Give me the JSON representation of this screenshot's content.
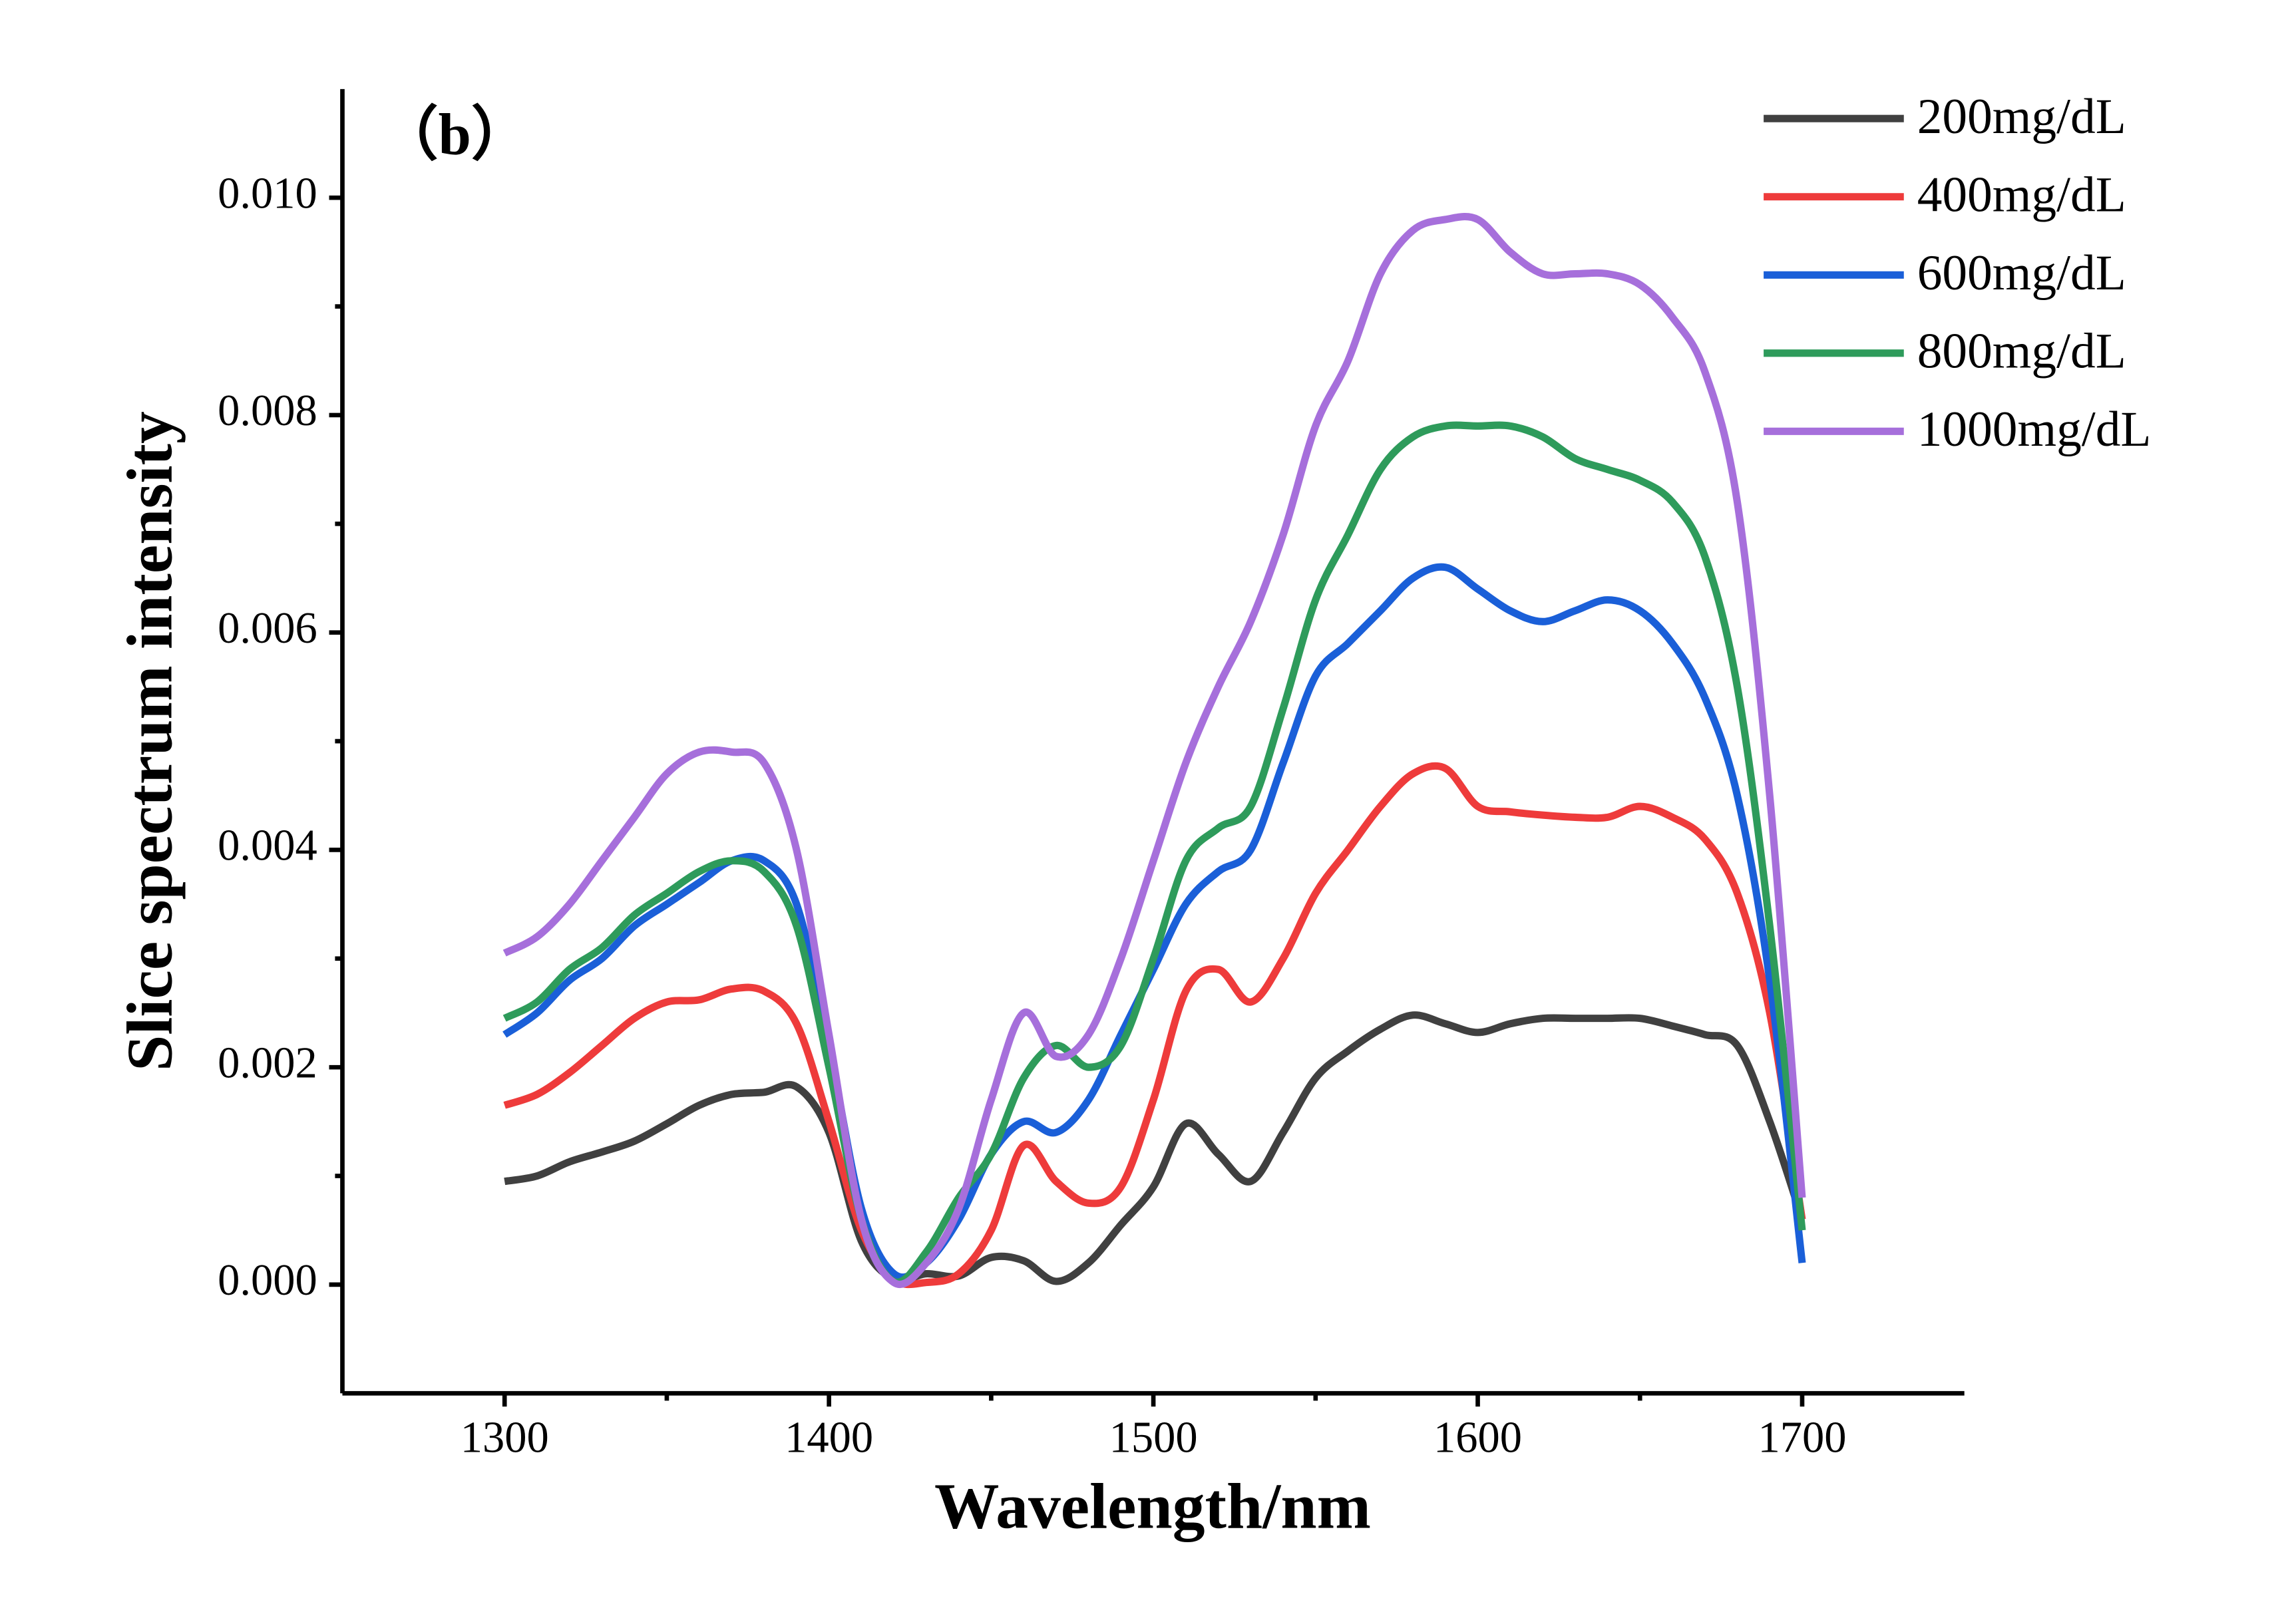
{
  "chart_data": {
    "type": "line",
    "annotation": "（b）",
    "x_label": "Wavelength/nm",
    "y_label": "Slice spectrum intensity",
    "x": [
      1300,
      1310,
      1320,
      1330,
      1340,
      1350,
      1360,
      1370,
      1380,
      1390,
      1400,
      1410,
      1420,
      1430,
      1440,
      1450,
      1460,
      1470,
      1480,
      1490,
      1500,
      1510,
      1520,
      1530,
      1540,
      1550,
      1560,
      1570,
      1580,
      1590,
      1600,
      1610,
      1620,
      1630,
      1640,
      1650,
      1660,
      1670,
      1680,
      1690,
      1700
    ],
    "series": [
      {
        "name": "200mg/dL",
        "color": "#404040",
        "values": [
          0.00095,
          0.001,
          0.00113,
          0.00122,
          0.00132,
          0.00148,
          0.00165,
          0.00175,
          0.00177,
          0.00182,
          0.0014,
          0.0004,
          5e-05,
          0.0001,
          8e-05,
          0.00025,
          0.00022,
          3e-05,
          0.0002,
          0.00055,
          0.0009,
          0.00148,
          0.0012,
          0.00095,
          0.0014,
          0.0019,
          0.00215,
          0.00235,
          0.00248,
          0.0024,
          0.00232,
          0.0024,
          0.00245,
          0.00245,
          0.00245,
          0.00245,
          0.00238,
          0.0023,
          0.0022,
          0.0015,
          0.0006
        ]
      },
      {
        "name": "400mg/dL",
        "color": "#ee3b3b",
        "values": [
          0.00165,
          0.00175,
          0.00195,
          0.0022,
          0.00245,
          0.0026,
          0.00262,
          0.00272,
          0.0027,
          0.0024,
          0.0015,
          0.0005,
          5e-05,
          2e-05,
          0.0001,
          0.0005,
          0.00128,
          0.00095,
          0.00075,
          0.0009,
          0.0017,
          0.0027,
          0.0029,
          0.0026,
          0.003,
          0.0036,
          0.004,
          0.0044,
          0.0047,
          0.00475,
          0.0044,
          0.00435,
          0.00432,
          0.0043,
          0.0043,
          0.0044,
          0.0043,
          0.0041,
          0.0036,
          0.0025,
          0.0006
        ]
      },
      {
        "name": "600mg/dL",
        "color": "#1a5fd8",
        "values": [
          0.0023,
          0.0025,
          0.0028,
          0.003,
          0.0033,
          0.0035,
          0.0037,
          0.0039,
          0.0039,
          0.0035,
          0.0022,
          0.0007,
          0.0001,
          0.0002,
          0.0006,
          0.0012,
          0.0015,
          0.0014,
          0.0017,
          0.0023,
          0.0029,
          0.0035,
          0.0038,
          0.004,
          0.0048,
          0.0056,
          0.0059,
          0.0062,
          0.0065,
          0.0066,
          0.0064,
          0.0062,
          0.0061,
          0.0062,
          0.0063,
          0.0062,
          0.0059,
          0.0054,
          0.0045,
          0.0028,
          0.0002
        ]
      },
      {
        "name": "800mg/dL",
        "color": "#2e9b5b",
        "values": [
          0.00245,
          0.0026,
          0.0029,
          0.0031,
          0.0034,
          0.0036,
          0.0038,
          0.0039,
          0.0038,
          0.0033,
          0.002,
          0.0006,
          3e-05,
          0.0003,
          0.0008,
          0.0012,
          0.0019,
          0.0022,
          0.002,
          0.0022,
          0.003,
          0.0039,
          0.0042,
          0.0044,
          0.0053,
          0.0063,
          0.0069,
          0.0075,
          0.0078,
          0.0079,
          0.0079,
          0.0079,
          0.0078,
          0.0076,
          0.0075,
          0.0074,
          0.0072,
          0.0067,
          0.0055,
          0.0033,
          0.0005
        ]
      },
      {
        "name": "1000mg/dL",
        "color": "#a66fdb",
        "values": [
          0.00305,
          0.0032,
          0.0035,
          0.0039,
          0.0043,
          0.0047,
          0.0049,
          0.0049,
          0.0048,
          0.004,
          0.0023,
          0.0006,
          2e-05,
          0.0002,
          0.0007,
          0.0017,
          0.0025,
          0.0021,
          0.0023,
          0.003,
          0.0039,
          0.0048,
          0.0055,
          0.0061,
          0.0069,
          0.0079,
          0.0085,
          0.0093,
          0.0097,
          0.0098,
          0.0098,
          0.0095,
          0.0093,
          0.0093,
          0.0093,
          0.0092,
          0.0089,
          0.0084,
          0.0072,
          0.0045,
          0.0008
        ]
      }
    ],
    "xlim": [
      1250,
      1750
    ],
    "ylim": [
      -0.001,
      0.011
    ],
    "xticks": [
      1300,
      1400,
      1500,
      1600,
      1700
    ],
    "yticks": [
      {
        "value": 0,
        "label": "0.000"
      },
      {
        "value": 0.002,
        "label": "0.002"
      },
      {
        "value": 0.004,
        "label": "0.004"
      },
      {
        "value": 0.006,
        "label": "0.006"
      },
      {
        "value": 0.008,
        "label": "0.008"
      },
      {
        "value": 0.01,
        "label": "0.010"
      }
    ],
    "legend": "top-right"
  }
}
